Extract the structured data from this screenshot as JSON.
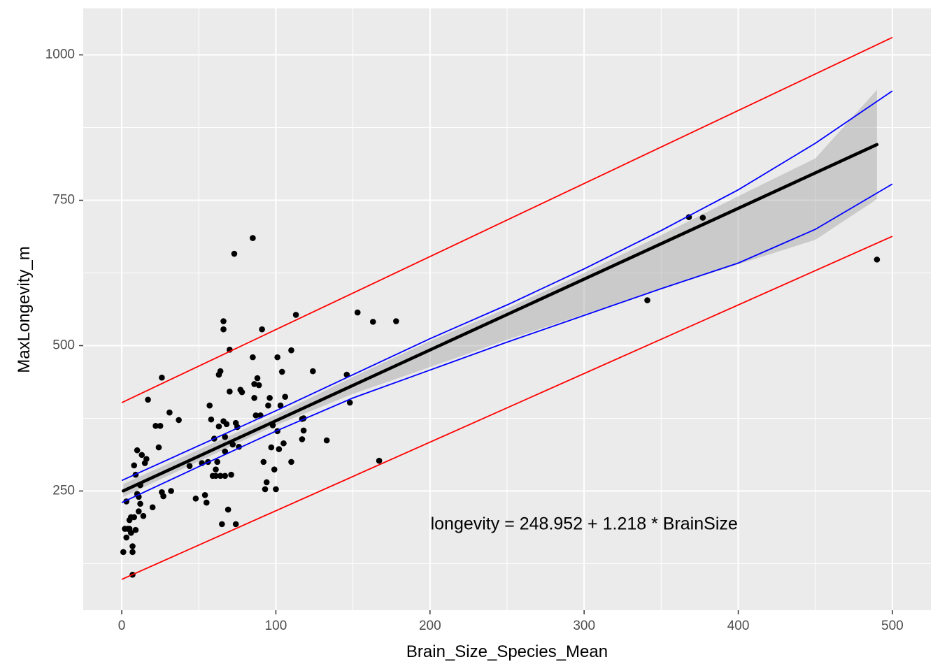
{
  "chart_data": {
    "type": "scatter",
    "title": "",
    "xlabel": "Brain_Size_Species_Mean",
    "ylabel": "MaxLongevity_m",
    "xlim": [
      -25,
      525
    ],
    "ylim": [
      45,
      1080
    ],
    "x_ticks": [
      0,
      100,
      200,
      300,
      400,
      500
    ],
    "y_ticks": [
      250,
      500,
      750,
      1000
    ],
    "grid": true,
    "legend": "none",
    "annotation": {
      "text": "longevity =  248.952  +  1.218 * BrainSize",
      "x": 300,
      "y": 192
    },
    "regression": {
      "intercept": 248.952,
      "slope": 1.218,
      "x_range": [
        1,
        490
      ]
    },
    "confidence_band": {
      "x": [
        1,
        50,
        100,
        150,
        200,
        250,
        300,
        350,
        400,
        450,
        490
      ],
      "lower": [
        240,
        301,
        363,
        417,
        463,
        510,
        554,
        597,
        640,
        682,
        752
      ],
      "upper": [
        262,
        321,
        381,
        446,
        508,
        564,
        625,
        690,
        757,
        822,
        940
      ]
    },
    "prediction_interval": {
      "x": [
        0,
        500
      ],
      "lower": [
        98,
        688
      ],
      "upper": [
        402,
        1030
      ],
      "color": "#ff0000"
    },
    "confidence_lines": {
      "x": [
        0,
        50,
        100,
        150,
        200,
        250,
        300,
        350,
        400,
        450,
        500
      ],
      "lower": [
        230,
        292,
        353,
        410,
        458,
        506,
        552,
        598,
        642,
        700,
        778
      ],
      "upper": [
        268,
        328,
        388,
        450,
        512,
        570,
        632,
        698,
        768,
        848,
        938
      ],
      "color": "#0000ff"
    },
    "series": [
      {
        "x": [
          1,
          2,
          3,
          3,
          4,
          5,
          5,
          6,
          6,
          7,
          7,
          7,
          8,
          8,
          9,
          9,
          10,
          10,
          11,
          11,
          12,
          12,
          13,
          14,
          15,
          16,
          17,
          20,
          22,
          24,
          25,
          26,
          26,
          27,
          31,
          32,
          37,
          44,
          48,
          52,
          54,
          55,
          56,
          57,
          58,
          59,
          60,
          61,
          61,
          62,
          63,
          63,
          64,
          64,
          65,
          66,
          66,
          66,
          67,
          67,
          67,
          68,
          69,
          70,
          70,
          71,
          72,
          73,
          74,
          74,
          75,
          76,
          77,
          78,
          85,
          85,
          86,
          86,
          87,
          88,
          89,
          90,
          91,
          92,
          93,
          94,
          95,
          96,
          97,
          98,
          99,
          100,
          101,
          101,
          102,
          103,
          104,
          105,
          106,
          110,
          110,
          113,
          117,
          117,
          118,
          118,
          124,
          133,
          146,
          148,
          153,
          163,
          167,
          178,
          341,
          368,
          377,
          490
        ],
        "y": [
          145,
          185,
          170,
          232,
          185,
          200,
          185,
          205,
          178,
          155,
          106,
          145,
          294,
          205,
          278,
          183,
          320,
          245,
          240,
          215,
          260,
          228,
          312,
          207,
          298,
          305,
          407,
          222,
          362,
          325,
          362,
          445,
          248,
          241,
          385,
          250,
          372,
          293,
          237,
          298,
          243,
          230,
          300,
          397,
          373,
          276,
          340,
          287,
          276,
          300,
          361,
          450,
          456,
          276,
          193,
          528,
          542,
          370,
          343,
          318,
          276,
          365,
          218,
          493,
          421,
          278,
          330,
          658,
          367,
          193,
          360,
          326,
          424,
          420,
          685,
          480,
          434,
          410,
          380,
          444,
          432,
          380,
          528,
          300,
          253,
          265,
          397,
          410,
          325,
          363,
          287,
          253,
          353,
          480,
          322,
          397,
          455,
          332,
          412,
          300,
          492,
          553,
          339,
          374,
          354,
          375,
          456,
          337,
          450,
          402,
          557,
          541,
          302,
          542,
          578,
          721,
          720,
          648
        ]
      }
    ]
  }
}
